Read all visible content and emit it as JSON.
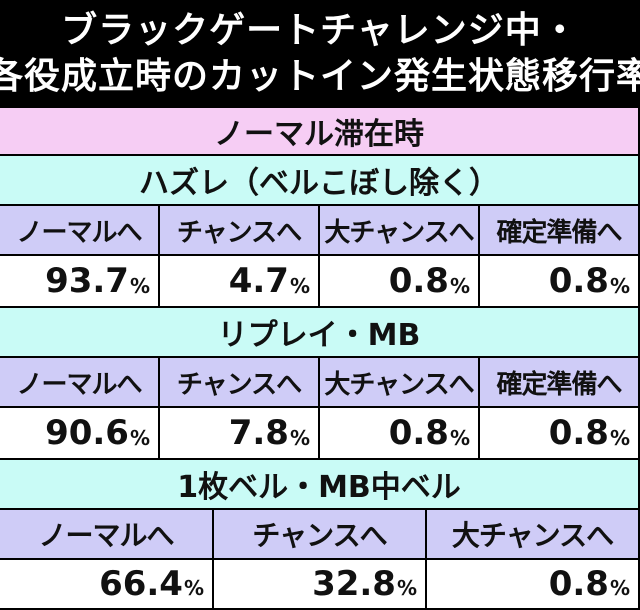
{
  "title": {
    "line1": "ブラックゲートチャレンジ中・",
    "line2": "各役成立時のカットイン発生状態移行率"
  },
  "state_header": "ノーマル滞在時",
  "percent_sign": "%",
  "sections": [
    {
      "role": "ハズレ（ベルこぼし除く）",
      "columns": [
        "ノーマルへ",
        "チャンスへ",
        "大チャンスへ",
        "確定準備へ"
      ],
      "values": [
        "93.7",
        "4.7",
        "0.8",
        "0.8"
      ]
    },
    {
      "role": "リプレイ・MB",
      "columns": [
        "ノーマルへ",
        "チャンスへ",
        "大チャンスへ",
        "確定準備へ"
      ],
      "values": [
        "90.6",
        "7.8",
        "0.8",
        "0.8"
      ]
    },
    {
      "role": "1枚ベル・MB中ベル",
      "columns": [
        "ノーマルへ",
        "チャンスへ",
        "大チャンスへ"
      ],
      "values": [
        "66.4",
        "32.8",
        "0.8"
      ]
    }
  ]
}
